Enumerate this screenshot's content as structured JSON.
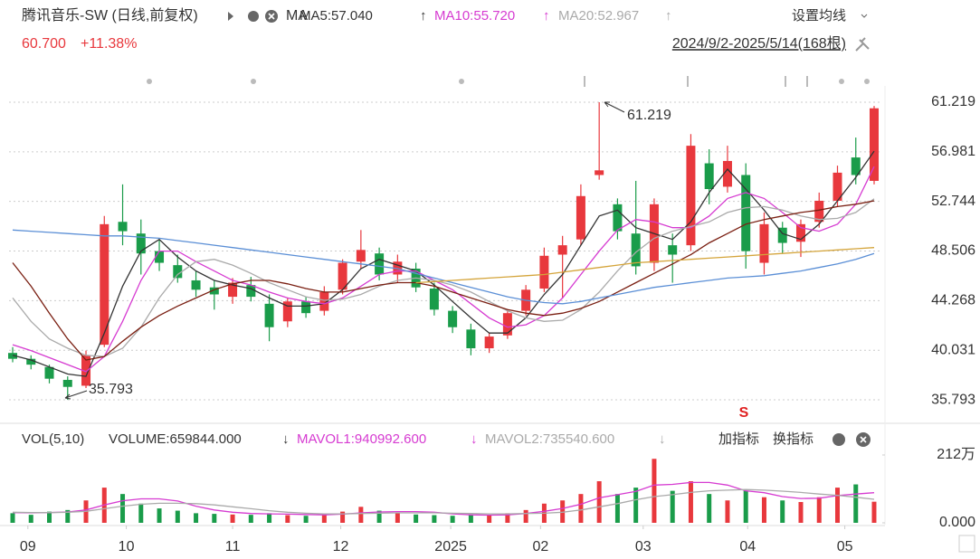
{
  "header": {
    "title": "腾讯音乐-SW (日线,前复权)",
    "ma": "MA",
    "ma_setting": "设置均线",
    "price": "60.700",
    "change": "+11.38%",
    "range": "2024/9/2-2025/5/14(168根)",
    "vol_title": "VOL(5,10)",
    "volume_label": "VOLUME:659844.000",
    "volume_trend": "↓",
    "add_indicator": "加指标",
    "switch_indicator": "换指标",
    "high_note": "61.219",
    "low_note": "35.793",
    "signal": "S"
  },
  "chart_data": [
    {
      "type": "candlestick",
      "up_color": "#e8383d",
      "down_color": "#1a9c4a",
      "open": [
        39.8,
        39.3,
        38.6,
        37.5,
        37.0,
        40.5,
        51.0,
        50.0,
        48.5,
        47.3,
        46.0,
        45.4,
        44.6,
        45.6,
        44.0,
        42.5,
        44.2,
        43.4,
        45.2,
        47.6,
        48.3,
        46.5,
        47.0,
        45.3,
        43.4,
        41.8,
        40.2,
        41.3,
        43.4,
        45.3,
        48.2,
        49.5,
        55.0,
        52.5,
        50.0,
        47.5,
        49.0,
        49.0,
        56.0,
        54.0,
        55.0,
        47.5,
        50.5,
        49.3,
        51.0,
        52.8,
        56.5,
        54.5
      ],
      "high": [
        40.3,
        39.6,
        38.8,
        37.8,
        40.0,
        51.5,
        54.2,
        51.2,
        49.5,
        48.2,
        46.8,
        46.0,
        46.2,
        46.3,
        44.8,
        44.5,
        44.6,
        45.5,
        47.8,
        50.3,
        48.8,
        48.2,
        47.5,
        45.8,
        43.8,
        42.3,
        41.5,
        43.5,
        45.6,
        48.8,
        49.8,
        54.2,
        61.219,
        53.0,
        54.5,
        53.0,
        50.0,
        58.5,
        57.2,
        57.5,
        56.0,
        51.8,
        51.0,
        51.2,
        53.5,
        55.8,
        58.2,
        60.9
      ],
      "low": [
        39.0,
        38.4,
        37.2,
        35.793,
        36.8,
        40.3,
        49.0,
        46.5,
        46.8,
        45.8,
        44.6,
        43.5,
        44.0,
        44.2,
        40.8,
        42.0,
        42.8,
        43.0,
        44.8,
        47.0,
        46.0,
        45.8,
        45.0,
        43.0,
        41.5,
        39.6,
        39.8,
        41.0,
        43.0,
        45.0,
        44.5,
        49.0,
        54.6,
        49.5,
        46.5,
        46.8,
        45.8,
        48.5,
        52.5,
        53.5,
        47.0,
        46.5,
        48.3,
        48.0,
        50.5,
        52.3,
        54.2,
        54.2
      ],
      "close": [
        39.3,
        38.8,
        37.6,
        36.9,
        39.6,
        50.8,
        50.2,
        48.3,
        47.5,
        46.2,
        45.2,
        44.8,
        45.8,
        44.6,
        42.0,
        44.2,
        43.2,
        45.0,
        47.5,
        48.6,
        46.5,
        47.6,
        45.4,
        43.5,
        42.0,
        40.2,
        41.2,
        43.2,
        45.2,
        48.1,
        49.0,
        53.2,
        55.4,
        50.2,
        47.2,
        52.5,
        48.2,
        57.5,
        53.8,
        56.2,
        48.5,
        50.8,
        49.2,
        50.8,
        52.8,
        55.2,
        55.0,
        60.7
      ],
      "series": [
        {
          "name": "MA5:57.040",
          "trend": "↑",
          "color": "#333333",
          "values": [
            39.6,
            39.2,
            38.6,
            38.0,
            37.8,
            41.5,
            45.5,
            48.5,
            49.5,
            48.0,
            46.8,
            46.0,
            45.6,
            45.3,
            44.5,
            43.8,
            43.8,
            44.0,
            45.2,
            47.0,
            47.8,
            47.3,
            46.8,
            45.6,
            44.2,
            42.8,
            41.5,
            41.5,
            42.8,
            44.8,
            46.5,
            49.0,
            51.5,
            52.0,
            50.5,
            50.0,
            49.5,
            51.0,
            53.5,
            55.5,
            53.8,
            52.0,
            50.0,
            49.5,
            50.8,
            52.8,
            54.8,
            57.04
          ]
        },
        {
          "name": "MA10:55.720",
          "trend": "↑",
          "color": "#d63bd1",
          "values": [
            40.5,
            40.0,
            39.4,
            38.8,
            38.2,
            39.5,
            42.5,
            46.0,
            48.5,
            48.5,
            47.6,
            46.8,
            46.0,
            45.6,
            45.0,
            44.5,
            44.2,
            44.0,
            44.5,
            45.5,
            46.5,
            46.8,
            46.8,
            46.0,
            45.2,
            44.0,
            42.8,
            42.0,
            42.2,
            43.0,
            44.5,
            46.5,
            48.5,
            50.3,
            51.2,
            51.0,
            50.5,
            50.5,
            51.5,
            53.0,
            53.5,
            53.0,
            51.8,
            50.5,
            50.2,
            50.8,
            52.5,
            55.72
          ]
        },
        {
          "name": "MA20:52.967",
          "trend": "↑",
          "color": "#aaaaaa",
          "values": [
            44.5,
            42.5,
            41.0,
            40.2,
            39.6,
            39.5,
            40.2,
            42.0,
            44.5,
            46.5,
            47.6,
            47.8,
            47.3,
            46.6,
            45.8,
            45.2,
            44.6,
            44.3,
            44.4,
            44.8,
            45.5,
            46.0,
            46.2,
            46.0,
            45.6,
            45.0,
            44.2,
            43.4,
            42.8,
            42.5,
            42.6,
            43.5,
            45.0,
            46.8,
            48.4,
            49.6,
            50.2,
            50.6,
            51.0,
            51.8,
            52.2,
            52.3,
            52.0,
            51.5,
            51.2,
            51.3,
            51.8,
            52.967
          ]
        },
        {
          "color": "#7a1f12",
          "values": [
            47.5,
            45.5,
            43.2,
            41.0,
            39.2,
            39.5,
            40.8,
            42.0,
            43.0,
            43.8,
            44.5,
            45.2,
            45.7,
            46.0,
            46.0,
            45.7,
            45.3,
            45.0,
            45.0,
            45.3,
            45.6,
            45.8,
            45.8,
            45.5,
            45.0,
            44.5,
            44.0,
            43.5,
            43.2,
            43.0,
            43.2,
            43.6,
            44.2,
            45.0,
            45.8,
            46.6,
            47.4,
            48.2,
            49.2,
            50.0,
            50.8,
            51.2,
            51.5,
            51.8,
            52.0,
            52.3,
            52.5,
            52.8
          ]
        },
        {
          "color": "#5b8fd6",
          "values": [
            50.3,
            50.2,
            50.1,
            50.0,
            49.9,
            49.8,
            49.8,
            49.7,
            49.6,
            49.4,
            49.2,
            49.0,
            48.8,
            48.6,
            48.4,
            48.2,
            48.0,
            47.8,
            47.6,
            47.4,
            47.2,
            47.0,
            46.6,
            46.2,
            45.8,
            45.4,
            45.0,
            44.6,
            44.3,
            44.1,
            44.0,
            44.2,
            44.5,
            44.8,
            45.1,
            45.4,
            45.6,
            45.8,
            46.0,
            46.2,
            46.3,
            46.4,
            46.6,
            46.8,
            47.1,
            47.4,
            47.8,
            48.3
          ]
        },
        {
          "color": "#d4a43a",
          "values": [
            null,
            null,
            null,
            null,
            null,
            null,
            null,
            null,
            null,
            null,
            null,
            null,
            null,
            null,
            null,
            null,
            null,
            null,
            null,
            null,
            null,
            null,
            45.8,
            45.9,
            46.0,
            46.1,
            46.2,
            46.3,
            46.4,
            46.5,
            46.7,
            46.9,
            47.1,
            47.3,
            47.5,
            47.6,
            47.7,
            47.8,
            47.9,
            48.0,
            48.1,
            48.2,
            48.3,
            48.4,
            48.5,
            48.6,
            48.7,
            48.8
          ]
        }
      ],
      "xlim": [
        0,
        47
      ],
      "xticks": [
        {
          "value": 0.83,
          "label": "09"
        },
        {
          "value": 6.2,
          "label": "10"
        },
        {
          "value": 12.0,
          "label": "11"
        },
        {
          "value": 17.9,
          "label": "12"
        },
        {
          "value": 23.9,
          "label": "2025"
        },
        {
          "value": 28.8,
          "label": "02"
        },
        {
          "value": 34.4,
          "label": "03"
        },
        {
          "value": 40.1,
          "label": "04"
        },
        {
          "value": 45.4,
          "label": "05"
        }
      ],
      "ylim": [
        34.02,
        62.61
      ],
      "yticks": [
        35.793,
        40.031,
        44.268,
        48.506,
        52.744,
        56.981,
        61.219
      ],
      "grid": true
    },
    {
      "type": "bar",
      "values": [
        300000,
        250000,
        350000,
        400000,
        700000,
        1100000,
        900000,
        600000,
        450000,
        380000,
        300000,
        280000,
        260000,
        250000,
        300000,
        240000,
        220000,
        260000,
        350000,
        500000,
        380000,
        300000,
        260000,
        240000,
        220000,
        260000,
        250000,
        300000,
        400000,
        600000,
        700000,
        900000,
        1300000,
        900000,
        1100000,
        2000000,
        1000000,
        1300000,
        900000,
        700000,
        1000000,
        800000,
        700000,
        650000,
        800000,
        1100000,
        1200000,
        659844
      ],
      "series": [
        {
          "name": "MAVOL1:940992.600",
          "trend": "↓",
          "color": "#d63bd1",
          "values": [
            320000,
            310000,
            320000,
            340000,
            400000,
            560000,
            690000,
            750000,
            750000,
            680000,
            520000,
            400000,
            330000,
            290000,
            280000,
            270000,
            260000,
            250000,
            270000,
            310000,
            340000,
            350000,
            350000,
            330000,
            280000,
            250000,
            240000,
            250000,
            290000,
            360000,
            450000,
            580000,
            780000,
            880000,
            980000,
            1180000,
            1200000,
            1260000,
            1260000,
            1180000,
            1000000,
            940000,
            820000,
            760000,
            770000,
            850000,
            900000,
            940992.6
          ]
        },
        {
          "name": "MAVOL2:735540.600",
          "trend": "↓",
          "color": "#aaaaaa",
          "values": [
            330000,
            320000,
            320000,
            330000,
            360000,
            440000,
            520000,
            580000,
            610000,
            610000,
            600000,
            560000,
            500000,
            440000,
            380000,
            330000,
            300000,
            280000,
            280000,
            290000,
            300000,
            310000,
            310000,
            310000,
            300000,
            290000,
            280000,
            280000,
            290000,
            300000,
            330000,
            400000,
            500000,
            600000,
            720000,
            820000,
            880000,
            950000,
            1000000,
            1020000,
            1040000,
            1020000,
            990000,
            950000,
            900000,
            860000,
            800000,
            735540.6
          ]
        }
      ],
      "ylim": [
        0,
        2120000
      ],
      "yticks": [
        {
          "value": 0,
          "label": "0.000"
        },
        {
          "value": 2120000,
          "label": "212万"
        }
      ]
    }
  ]
}
